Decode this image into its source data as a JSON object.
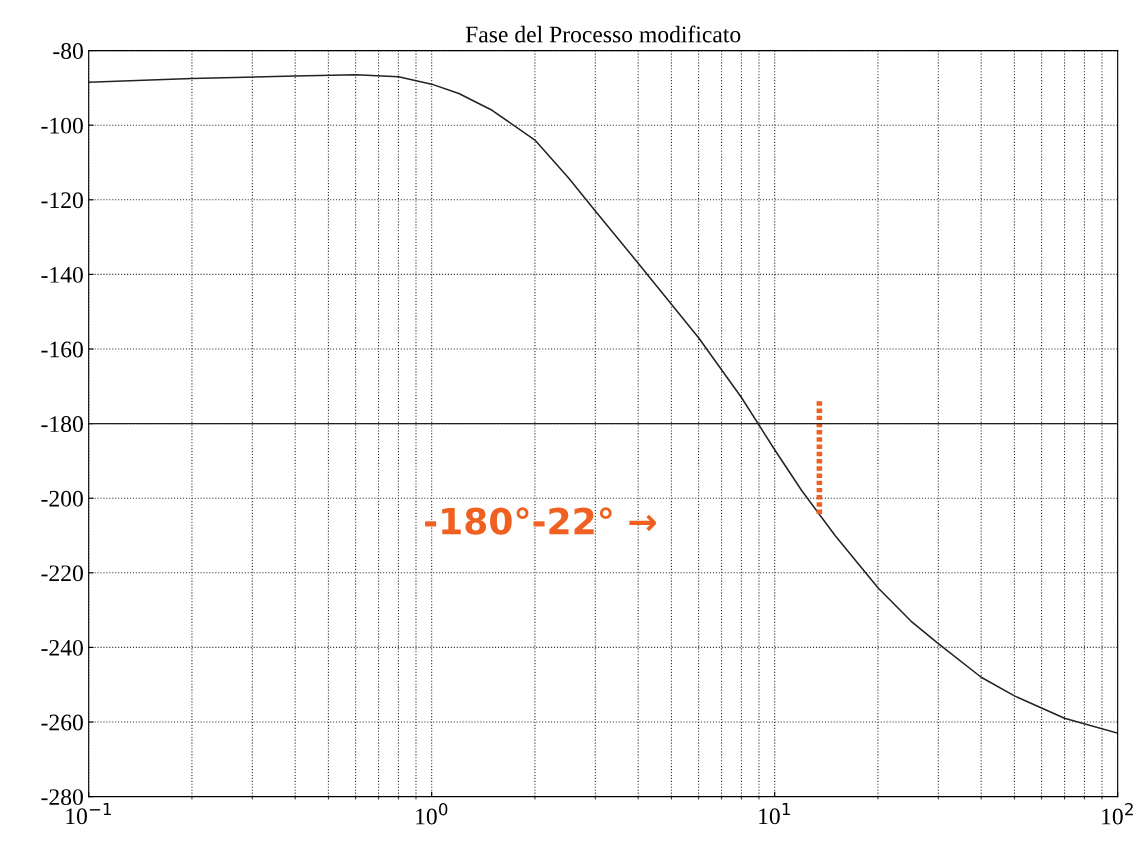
{
  "chart_data": {
    "type": "line",
    "title": "Fase del Processo modificato",
    "log": "x",
    "grid": true,
    "legend": false,
    "xlim": [
      0.1,
      100
    ],
    "xticks": [
      {
        "value": 0.1,
        "label": "10$^{−1}$"
      },
      {
        "value": 1,
        "label": "10$^{0}$"
      },
      {
        "value": 10,
        "label": "10$^{1}$"
      },
      {
        "value": 100,
        "label": "10$^{2}$"
      }
    ],
    "ylim": [
      -280,
      -80
    ],
    "yticks": [
      -280,
      -260,
      -240,
      -220,
      -200,
      -180,
      -160,
      -140,
      -120,
      -100,
      -80
    ],
    "series": [
      {
        "color": "#222222",
        "line_style": "solid",
        "x": [
          0.1,
          0.2,
          0.4,
          0.6,
          0.8,
          1,
          1.2,
          1.5,
          2,
          2.5,
          3,
          4,
          5,
          6,
          8,
          10,
          12,
          15,
          20,
          25,
          30,
          40,
          50,
          70,
          100
        ],
        "values": [
          -88.5,
          -87.5,
          -86.8,
          -86.5,
          -87,
          -89,
          -91.5,
          -96,
          -104,
          -114,
          -123,
          -137,
          -148,
          -157,
          -173,
          -187,
          -198,
          -210,
          -224,
          -233,
          -239,
          -248,
          -253,
          -259,
          -263
        ]
      },
      {
        "color": "#f06020",
        "line_style": "dotted",
        "x": [
          13.5,
          13.5
        ],
        "values": [
          -174,
          -205
        ]
      }
    ],
    "ref_lines": [
      {
        "axis": "y",
        "value": -180,
        "color": "#222222",
        "line_style": "solid"
      }
    ],
    "annotations": [
      "-180°-22° →"
    ]
  }
}
